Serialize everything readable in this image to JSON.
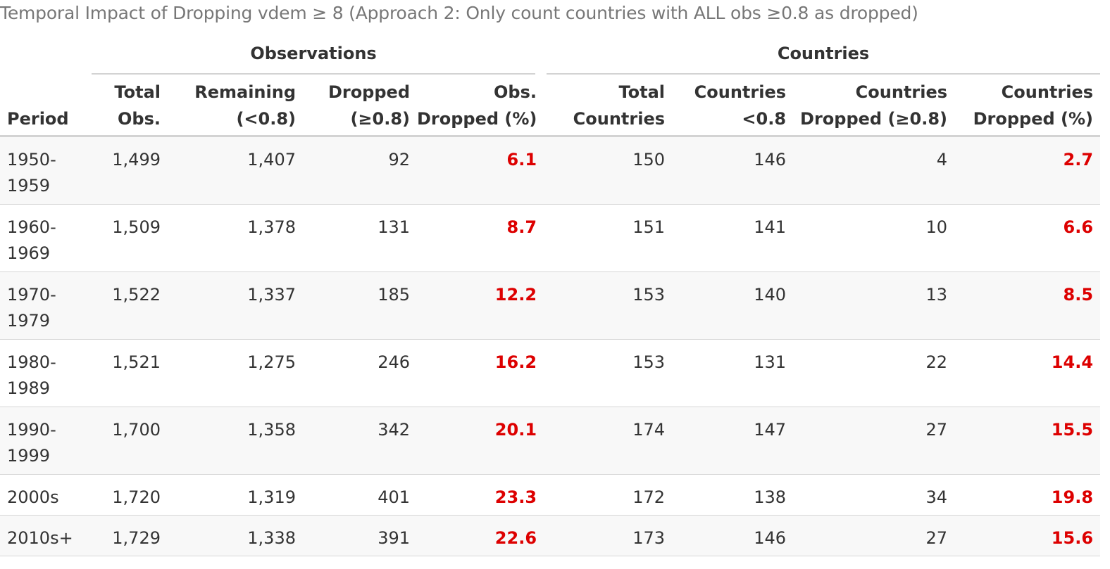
{
  "caption": "Temporal Impact of Dropping vdem ≥ 8 (Approach 2: Only count countries with ALL obs ≥0.8 as dropped)",
  "spanners": {
    "observations": "Observations",
    "countries": "Countries"
  },
  "columns": {
    "period": "Period",
    "total_obs": [
      "Total",
      "Obs."
    ],
    "remaining": [
      "Remaining",
      "(<0.8)"
    ],
    "dropped": [
      "Dropped",
      "(≥0.8)"
    ],
    "obs_dropped_pct": [
      "Obs.",
      "Dropped (%)"
    ],
    "total_countries": [
      "Total",
      "Countries"
    ],
    "countries_lt": [
      "Countries",
      "<0.8"
    ],
    "countries_dropped": [
      "Countries",
      "Dropped (≥0.8)"
    ],
    "countries_dropped_pct": [
      "Countries",
      "Dropped (%)"
    ]
  },
  "rows": [
    {
      "period": "1950-1959",
      "total_obs": "1,499",
      "remaining": "1,407",
      "dropped": "92",
      "obs_pct": "6.1",
      "total_countries": "150",
      "countries_lt": "146",
      "countries_dropped": "4",
      "countries_pct": "2.7"
    },
    {
      "period": "1960-1969",
      "total_obs": "1,509",
      "remaining": "1,378",
      "dropped": "131",
      "obs_pct": "8.7",
      "total_countries": "151",
      "countries_lt": "141",
      "countries_dropped": "10",
      "countries_pct": "6.6"
    },
    {
      "period": "1970-1979",
      "total_obs": "1,522",
      "remaining": "1,337",
      "dropped": "185",
      "obs_pct": "12.2",
      "total_countries": "153",
      "countries_lt": "140",
      "countries_dropped": "13",
      "countries_pct": "8.5"
    },
    {
      "period": "1980-1989",
      "total_obs": "1,521",
      "remaining": "1,275",
      "dropped": "246",
      "obs_pct": "16.2",
      "total_countries": "153",
      "countries_lt": "131",
      "countries_dropped": "22",
      "countries_pct": "14.4"
    },
    {
      "period": "1990-1999",
      "total_obs": "1,700",
      "remaining": "1,358",
      "dropped": "342",
      "obs_pct": "20.1",
      "total_countries": "174",
      "countries_lt": "147",
      "countries_dropped": "27",
      "countries_pct": "15.5"
    },
    {
      "period": "2000s",
      "total_obs": "1,720",
      "remaining": "1,319",
      "dropped": "401",
      "obs_pct": "23.3",
      "total_countries": "172",
      "countries_lt": "138",
      "countries_dropped": "34",
      "countries_pct": "19.8"
    },
    {
      "period": "2010s+",
      "total_obs": "1,729",
      "remaining": "1,338",
      "dropped": "391",
      "obs_pct": "22.6",
      "total_countries": "173",
      "countries_lt": "146",
      "countries_dropped": "27",
      "countries_pct": "15.6"
    }
  ],
  "colors": {
    "highlight": "#dd0000",
    "caption": "#777777",
    "text": "#333333",
    "rule": "#d3d3d3",
    "zebra": "#f8f8f8"
  }
}
